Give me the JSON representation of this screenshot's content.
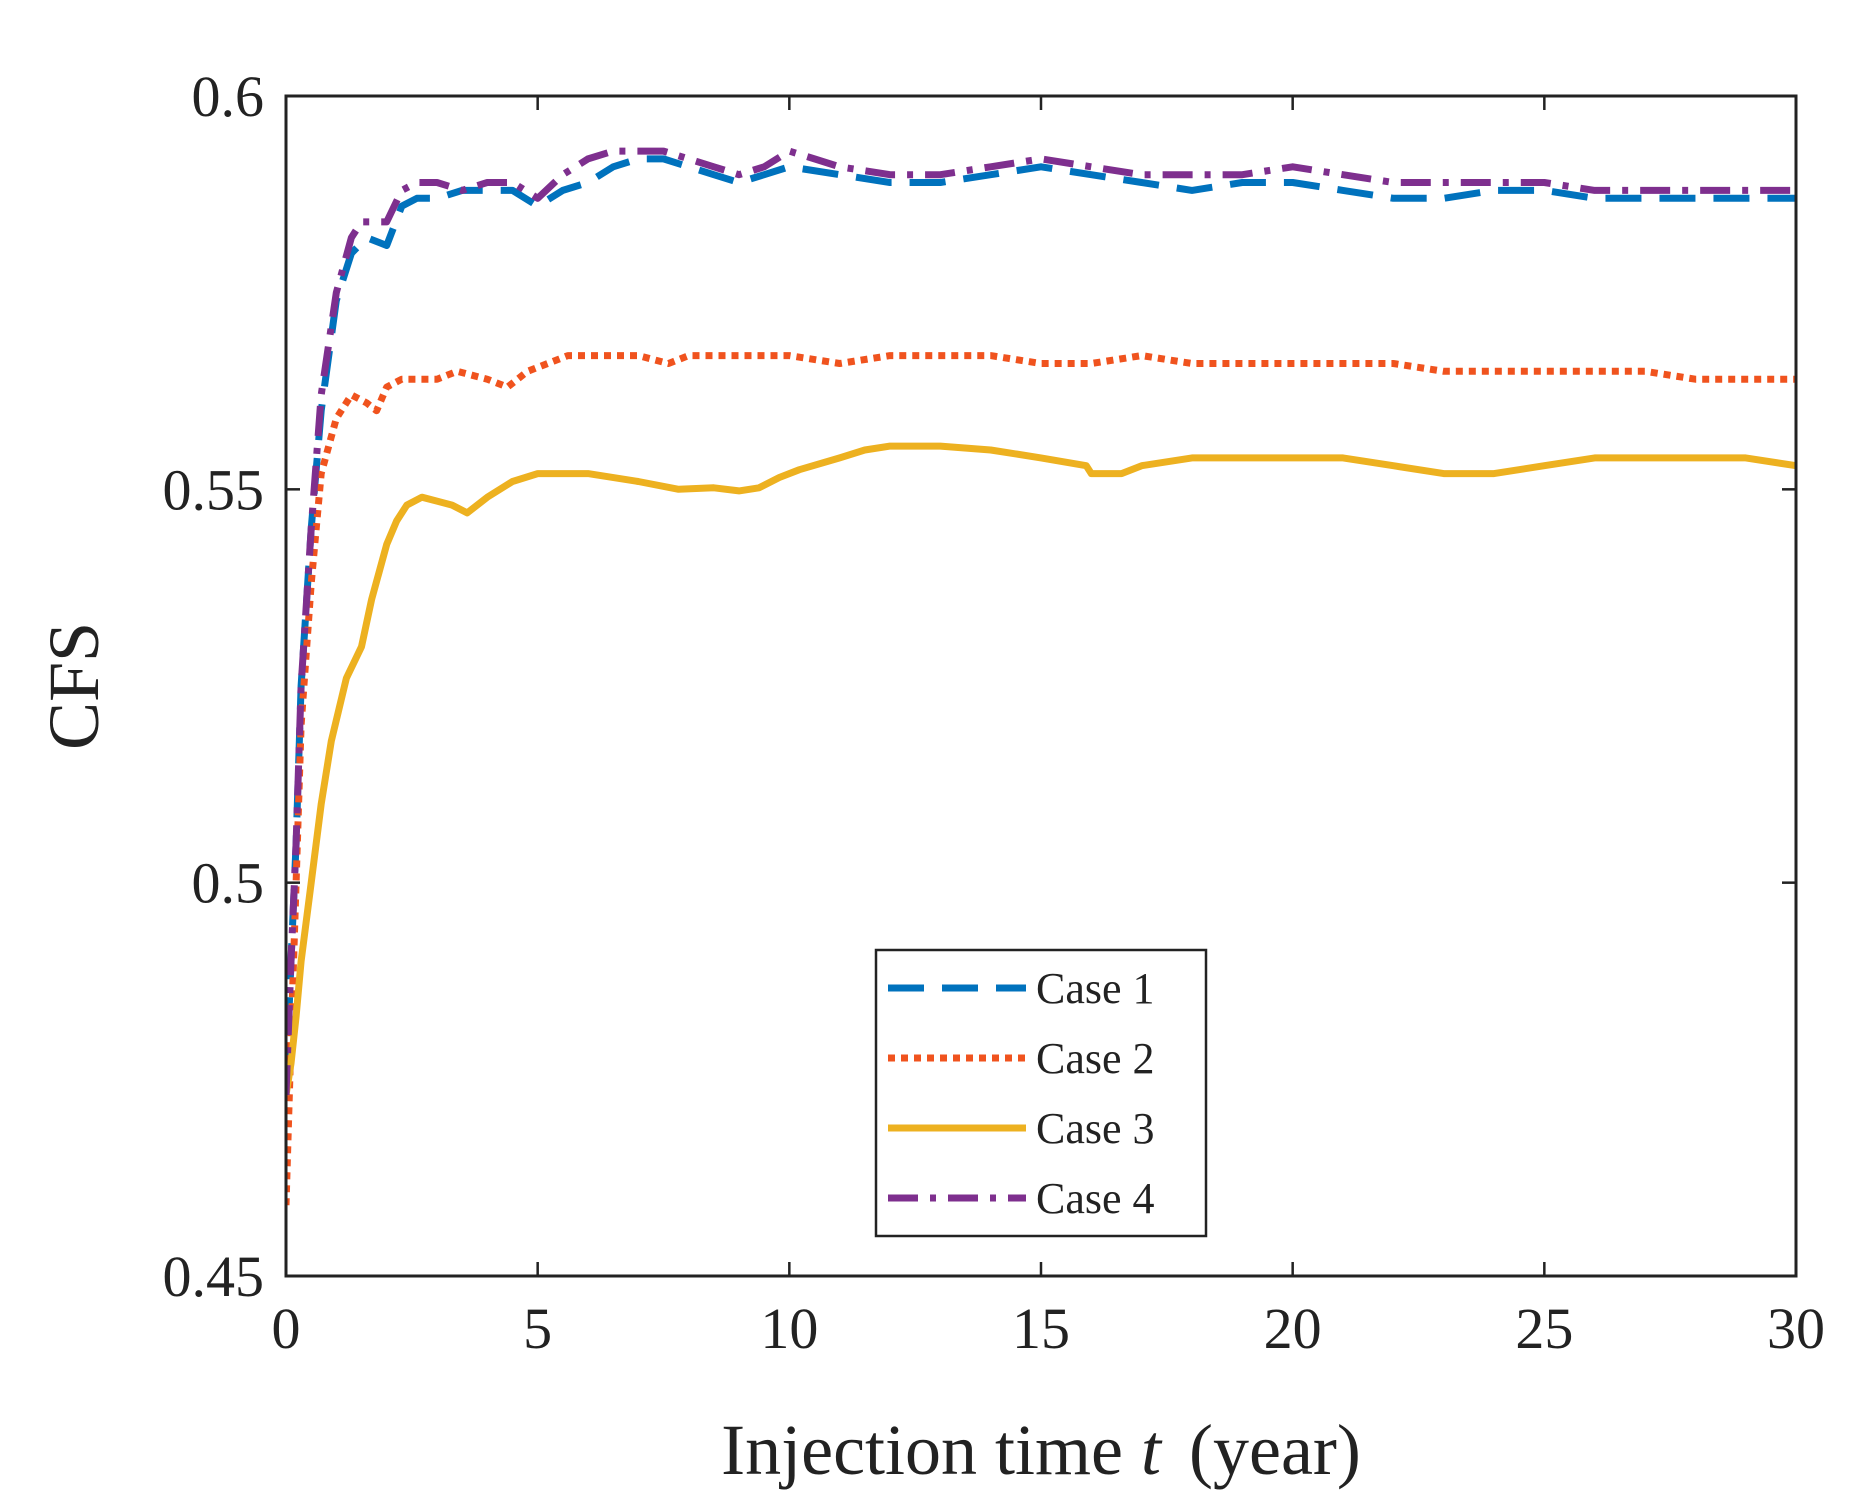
{
  "chart_data": {
    "type": "line",
    "xlabel": "Injection time",
    "xlabel_var": "t",
    "xlabel_unit": "(year)",
    "ylabel": "CFS",
    "xlim": [
      0,
      30
    ],
    "ylim": [
      0.45,
      0.6
    ],
    "xticks": [
      0,
      5,
      10,
      15,
      20,
      25,
      30
    ],
    "yticks": [
      0.45,
      0.5,
      0.55,
      0.6
    ],
    "xtick_labels": [
      "0",
      "5",
      "10",
      "15",
      "20",
      "25",
      "30"
    ],
    "ytick_labels": [
      "0.45",
      "0.5",
      "0.55",
      "0.6"
    ],
    "grid": false,
    "legend_position": "bottom-center",
    "series": [
      {
        "name": "Case 1",
        "color": "#0072BD",
        "dash": "dashed",
        "x": [
          0,
          0.1,
          0.2,
          0.3,
          0.5,
          0.7,
          1.0,
          1.3,
          1.6,
          2.0,
          2.3,
          2.6,
          3.0,
          3.5,
          4.0,
          4.5,
          5.0,
          5.5,
          6.0,
          6.5,
          7.0,
          7.5,
          8.0,
          8.5,
          9.0,
          9.5,
          10.0,
          11.0,
          12.0,
          13.0,
          14.0,
          15.0,
          16.0,
          17.0,
          18.0,
          19.0,
          20.0,
          21.0,
          22.0,
          23.0,
          24.0,
          25.0,
          26.0,
          27.0,
          28.0,
          29.0,
          30.0
        ],
        "y": [
          0.474,
          0.49,
          0.505,
          0.525,
          0.545,
          0.56,
          0.574,
          0.58,
          0.582,
          0.581,
          0.586,
          0.587,
          0.587,
          0.588,
          0.588,
          0.588,
          0.586,
          0.588,
          0.589,
          0.591,
          0.592,
          0.592,
          0.591,
          0.59,
          0.589,
          0.59,
          0.591,
          0.59,
          0.589,
          0.589,
          0.59,
          0.591,
          0.59,
          0.589,
          0.588,
          0.589,
          0.589,
          0.588,
          0.587,
          0.587,
          0.588,
          0.588,
          0.587,
          0.587,
          0.587,
          0.587,
          0.587
        ]
      },
      {
        "name": "Case 2",
        "color": "#F0531E",
        "dash": "dotted",
        "x": [
          0,
          0.1,
          0.2,
          0.3,
          0.5,
          0.7,
          1.0,
          1.3,
          1.6,
          1.8,
          2.0,
          2.3,
          2.6,
          3.0,
          3.4,
          4.0,
          4.4,
          4.8,
          5.2,
          5.6,
          6.0,
          7.0,
          7.6,
          8.0,
          9.0,
          10.0,
          11.0,
          12.0,
          13.0,
          14.0,
          15.0,
          16.0,
          17.0,
          18.0,
          19.0,
          20.0,
          21.0,
          22.0,
          23.0,
          24.0,
          25.0,
          26.0,
          27.0,
          28.0,
          29.0,
          30.0
        ],
        "y": [
          0.459,
          0.48,
          0.5,
          0.52,
          0.538,
          0.552,
          0.559,
          0.562,
          0.561,
          0.56,
          0.563,
          0.564,
          0.564,
          0.564,
          0.565,
          0.564,
          0.563,
          0.565,
          0.566,
          0.567,
          0.567,
          0.567,
          0.566,
          0.567,
          0.567,
          0.567,
          0.566,
          0.567,
          0.567,
          0.567,
          0.566,
          0.566,
          0.567,
          0.566,
          0.566,
          0.566,
          0.566,
          0.566,
          0.565,
          0.565,
          0.565,
          0.565,
          0.565,
          0.564,
          0.564,
          0.564
        ]
      },
      {
        "name": "Case 3",
        "color": "#EDB120",
        "dash": "solid",
        "x": [
          0,
          0.1,
          0.2,
          0.3,
          0.5,
          0.7,
          0.9,
          1.2,
          1.5,
          1.7,
          2.0,
          2.2,
          2.4,
          2.7,
          3.0,
          3.3,
          3.6,
          4.0,
          4.5,
          5.0,
          5.5,
          6.0,
          7.0,
          7.8,
          8.5,
          9.0,
          9.4,
          9.8,
          10.2,
          11.0,
          11.5,
          12.0,
          13.0,
          14.0,
          15.0,
          15.9,
          16.0,
          16.2,
          16.6,
          17.0,
          18.0,
          19.0,
          20.0,
          21.0,
          22.0,
          23.0,
          24.0,
          25.0,
          26.0,
          27.0,
          28.0,
          29.0,
          30.0
        ],
        "y": [
          0.473,
          0.477,
          0.483,
          0.49,
          0.5,
          0.51,
          0.518,
          0.526,
          0.53,
          0.536,
          0.543,
          0.546,
          0.548,
          0.549,
          0.5485,
          0.548,
          0.547,
          0.549,
          0.551,
          0.552,
          0.552,
          0.552,
          0.551,
          0.55,
          0.5502,
          0.5498,
          0.5502,
          0.5515,
          0.5525,
          0.554,
          0.555,
          0.5555,
          0.5555,
          0.555,
          0.554,
          0.553,
          0.552,
          0.552,
          0.552,
          0.553,
          0.554,
          0.554,
          0.554,
          0.554,
          0.553,
          0.552,
          0.552,
          0.553,
          0.554,
          0.554,
          0.554,
          0.554,
          0.553
        ]
      },
      {
        "name": "Case 4",
        "color": "#7E2F8E",
        "dash": "dashdot",
        "x": [
          0,
          0.1,
          0.2,
          0.3,
          0.5,
          0.7,
          1.0,
          1.3,
          1.5,
          2.0,
          2.3,
          2.6,
          3.0,
          3.5,
          4.0,
          4.5,
          5.0,
          5.5,
          6.0,
          6.5,
          7.0,
          7.5,
          8.0,
          8.5,
          9.0,
          9.5,
          10.0,
          10.5,
          11.0,
          12.0,
          13.0,
          14.0,
          15.0,
          16.0,
          17.0,
          18.0,
          19.0,
          20.0,
          21.0,
          22.0,
          23.0,
          24.0,
          25.0,
          26.0,
          27.0,
          28.0,
          29.0,
          30.0
        ],
        "y": [
          0.473,
          0.49,
          0.505,
          0.525,
          0.545,
          0.562,
          0.575,
          0.582,
          0.584,
          0.584,
          0.588,
          0.589,
          0.589,
          0.588,
          0.589,
          0.589,
          0.587,
          0.59,
          0.592,
          0.593,
          0.593,
          0.593,
          0.592,
          0.591,
          0.59,
          0.591,
          0.593,
          0.592,
          0.591,
          0.59,
          0.59,
          0.591,
          0.592,
          0.591,
          0.59,
          0.59,
          0.59,
          0.591,
          0.59,
          0.589,
          0.589,
          0.589,
          0.589,
          0.588,
          0.588,
          0.588,
          0.588,
          0.588
        ]
      }
    ]
  }
}
